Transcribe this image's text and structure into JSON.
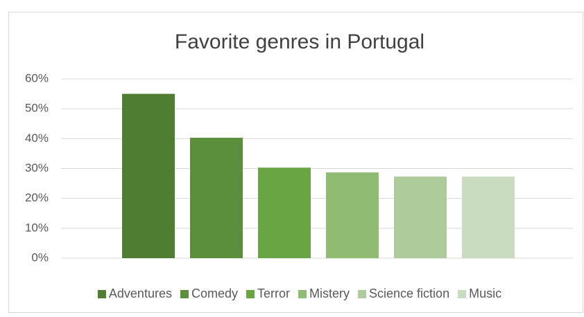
{
  "chart_data": {
    "type": "bar",
    "title": "Favorite genres in Portugal",
    "categories": [
      "Adventures",
      "Comedy",
      "Terror",
      "Mistery",
      "Science fiction",
      "Music"
    ],
    "values": [
      55,
      40.3,
      30.3,
      28.7,
      27.3,
      27.3
    ],
    "colors": [
      "#4f7d32",
      "#5b8f3b",
      "#6aa544",
      "#8fbb72",
      "#aecb9c",
      "#c9dcc0"
    ],
    "ylim": [
      0,
      60
    ],
    "yticks": [
      {
        "value": 0,
        "label": "0%"
      },
      {
        "value": 10,
        "label": "10%"
      },
      {
        "value": 20,
        "label": "20%"
      },
      {
        "value": 30,
        "label": "30%"
      },
      {
        "value": 40,
        "label": "40%"
      },
      {
        "value": 50,
        "label": "50%"
      },
      {
        "value": 60,
        "label": "60%"
      }
    ],
    "grid": true,
    "legend": "bottom"
  }
}
